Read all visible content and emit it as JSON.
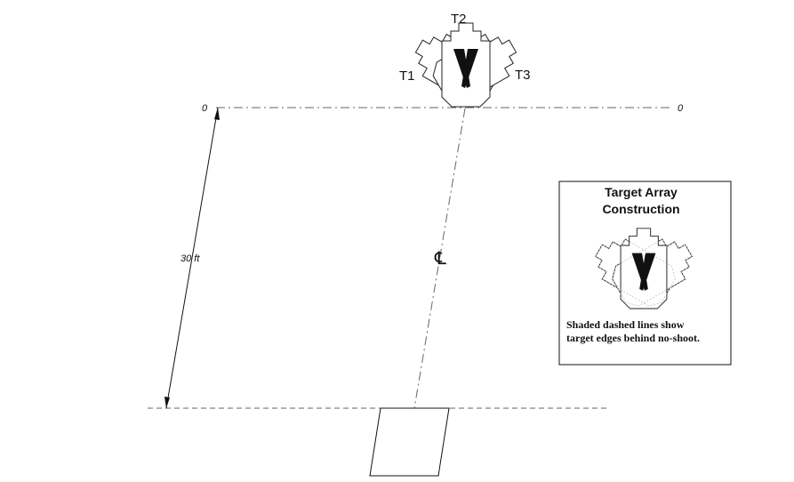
{
  "diagram": {
    "range_line_label_left": "0",
    "range_line_label_right": "0",
    "distance_label": "30 ft",
    "centerline_label": "℄",
    "targets": {
      "t1": "T1",
      "t2": "T2",
      "t3": "T3"
    },
    "inset": {
      "title_line1": "Target Array",
      "title_line2": "Construction",
      "note_line1": "Shaded dashed lines show",
      "note_line2": "target edges behind no-shoot."
    }
  }
}
